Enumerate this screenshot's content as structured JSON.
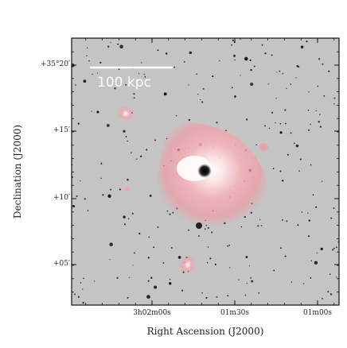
{
  "axes": {
    "xlabel": "Right Ascension (J2000)",
    "ylabel": "Declination (J2000)",
    "xticks": [
      "3h02m00s",
      "01m30s",
      "01m00s"
    ],
    "yticks": [
      "+35°20′",
      "+15′",
      "+10′",
      "+05′"
    ]
  },
  "scalebar": {
    "label": "100 kpc",
    "color": "#ffffff"
  },
  "colors": {
    "sky": "#c4c4c4",
    "emission": "#f2a0a8",
    "frame": "#111111"
  }
}
